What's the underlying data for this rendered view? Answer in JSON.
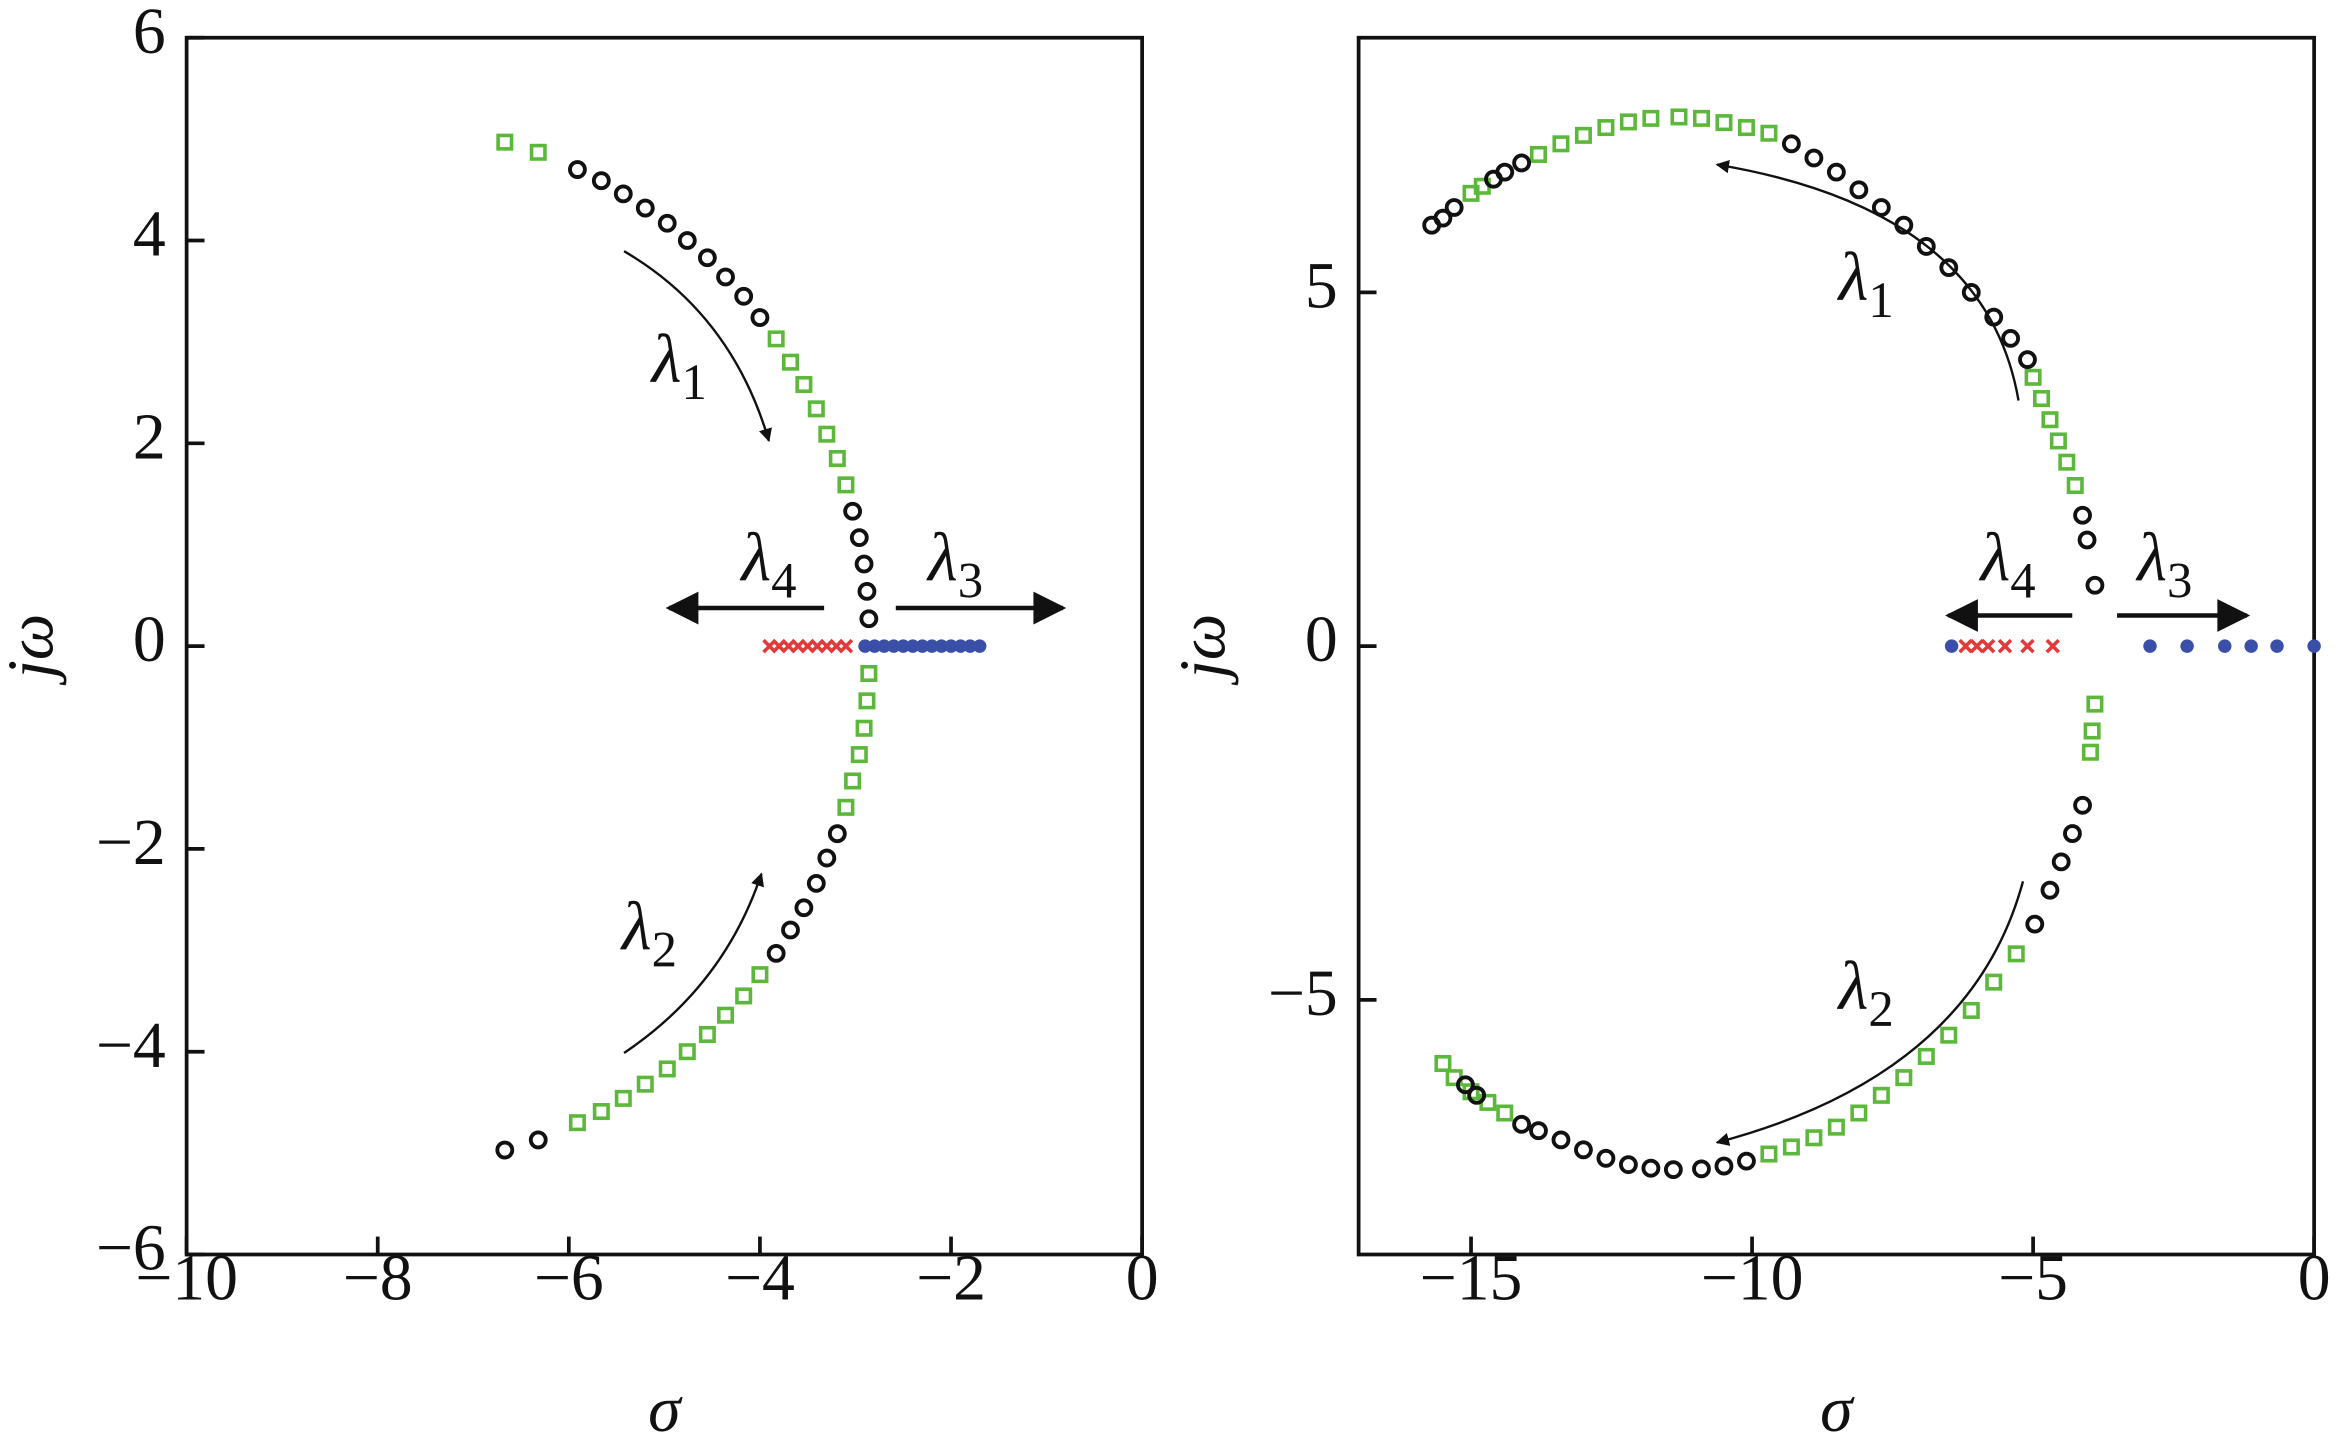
{
  "chart_data": [
    {
      "type": "scatter",
      "x_label": "σ",
      "y_label": "jω",
      "xlim": [
        -10,
        0
      ],
      "ylim": [
        -6,
        6
      ],
      "xticks": [
        {
          "value": -10,
          "label": "−10"
        },
        {
          "value": -8,
          "label": "−8"
        },
        {
          "value": -6,
          "label": "−6"
        },
        {
          "value": -4,
          "label": "−4"
        },
        {
          "value": -2,
          "label": "−2"
        },
        0
      ],
      "yticks": [
        {
          "value": -6,
          "label": "−6"
        },
        {
          "value": -4,
          "label": "−4"
        },
        {
          "value": -2,
          "label": "−2"
        },
        0,
        2,
        4,
        6
      ],
      "annotations": [
        {
          "symbol": "λ",
          "subscript": "1"
        },
        {
          "symbol": "λ",
          "subscript": "2"
        },
        {
          "symbol": "λ",
          "subscript": "3"
        },
        {
          "symbol": "λ",
          "subscript": "4"
        }
      ],
      "series": [
        {
          "color": "#5cb83a",
          "marker": "square",
          "x": [
            -6.67,
            -6.32,
            -3.83,
            -3.68,
            -3.54,
            -3.41,
            -3.3,
            -3.19,
            -3.1,
            -5.91,
            -5.66,
            -5.43,
            -5.2,
            -4.97,
            -4.76,
            -4.55,
            -4.36,
            -4.17,
            -4.0,
            -3.1,
            -3.03,
            -2.96,
            -2.91,
            -2.88,
            -2.86
          ],
          "y": [
            4.97,
            4.87,
            3.03,
            2.8,
            2.58,
            2.34,
            2.09,
            1.85,
            1.59,
            -4.7,
            -4.59,
            -4.46,
            -4.32,
            -4.17,
            -4.0,
            -3.83,
            -3.64,
            -3.45,
            -3.24,
            -1.59,
            -1.33,
            -1.07,
            -0.81,
            -0.54,
            -0.27
          ]
        },
        {
          "color": "#111111",
          "marker": "circle",
          "x": [
            -5.91,
            -5.66,
            -5.43,
            -5.2,
            -4.97,
            -4.76,
            -4.55,
            -4.36,
            -4.17,
            -4.0,
            -3.03,
            -2.96,
            -2.91,
            -2.88,
            -2.86,
            -6.67,
            -6.32,
            -3.83,
            -3.68,
            -3.54,
            -3.41,
            -3.3,
            -3.19
          ],
          "y": [
            4.7,
            4.59,
            4.46,
            4.32,
            4.17,
            4.0,
            3.83,
            3.64,
            3.45,
            3.24,
            1.33,
            1.07,
            0.81,
            0.54,
            0.27,
            -4.97,
            -4.87,
            -3.03,
            -2.8,
            -2.58,
            -2.34,
            -2.09,
            -1.85
          ]
        },
        {
          "color": "#e03a3a",
          "marker": "x",
          "x": [
            -3.9,
            -3.8,
            -3.7,
            -3.6,
            -3.5,
            -3.4,
            -3.3,
            -3.2,
            -3.1
          ],
          "y": [
            0,
            0,
            0,
            0,
            0,
            0,
            0,
            0,
            0
          ]
        },
        {
          "color": "#3a4fa8",
          "marker": "dot",
          "x": [
            -2.9,
            -2.8,
            -2.7,
            -2.6,
            -2.5,
            -2.4,
            -2.3,
            -2.2,
            -2.1,
            -2.0,
            -1.9,
            -1.8,
            -1.7
          ],
          "y": [
            0,
            0,
            0,
            0,
            0,
            0,
            0,
            0,
            0,
            0,
            0,
            0,
            0
          ]
        }
      ]
    },
    {
      "type": "scatter",
      "x_label": "σ",
      "y_label": "jω",
      "xlim": [
        -17,
        0
      ],
      "ylim": [
        -8.6,
        8.6
      ],
      "xticks": [
        {
          "value": -15,
          "label": "−15"
        },
        {
          "value": -10,
          "label": "−10"
        },
        {
          "value": -5,
          "label": "−5"
        },
        0
      ],
      "yticks": [
        {
          "value": -5,
          "label": "−5"
        },
        0,
        5
      ],
      "annotations": [
        {
          "symbol": "λ",
          "subscript": "1"
        },
        {
          "symbol": "λ",
          "subscript": "2"
        },
        {
          "symbol": "λ",
          "subscript": "3"
        },
        {
          "symbol": "λ",
          "subscript": "4"
        }
      ],
      "series": [
        {
          "color": "#5cb83a",
          "marker": "square",
          "x": [
            -15.0,
            -14.8,
            -13.8,
            -13.4,
            -13.0,
            -12.6,
            -12.2,
            -11.8,
            -11.3,
            -10.9,
            -10.5,
            -10.1,
            -9.7,
            -5.0,
            -4.85,
            -4.7,
            -4.55,
            -4.4,
            -4.25,
            -3.9,
            -3.95,
            -3.98,
            -5.3,
            -5.7,
            -6.1,
            -6.5,
            -6.9,
            -7.3,
            -7.7,
            -8.1,
            -8.5,
            -8.9,
            -9.3,
            -9.7,
            -14.4,
            -14.7,
            -15.0,
            -15.3,
            -15.5
          ],
          "y": [
            6.4,
            6.5,
            6.95,
            7.1,
            7.22,
            7.33,
            7.41,
            7.46,
            7.48,
            7.46,
            7.4,
            7.33,
            7.25,
            3.8,
            3.5,
            3.2,
            2.9,
            2.6,
            2.27,
            -0.82,
            -1.2,
            -1.5,
            -4.35,
            -4.75,
            -5.15,
            -5.5,
            -5.8,
            -6.1,
            -6.35,
            -6.6,
            -6.8,
            -6.95,
            -7.08,
            -7.18,
            -6.6,
            -6.45,
            -6.3,
            -6.1,
            -5.9
          ]
        },
        {
          "color": "#111111",
          "marker": "circle",
          "x": [
            -15.7,
            -15.5,
            -15.3,
            -14.6,
            -14.4,
            -14.1,
            -9.3,
            -8.9,
            -8.5,
            -8.1,
            -7.7,
            -7.3,
            -6.9,
            -6.5,
            -6.1,
            -5.7,
            -5.4,
            -5.1,
            -4.12,
            -4.04,
            -3.9,
            -4.12,
            -4.3,
            -4.5,
            -4.7,
            -4.97,
            -10.1,
            -10.5,
            -10.9,
            -11.4,
            -11.8,
            -12.2,
            -12.6,
            -13.0,
            -13.4,
            -13.8,
            -14.1,
            -14.9,
            -15.1
          ],
          "y": [
            5.95,
            6.05,
            6.2,
            6.6,
            6.7,
            6.83,
            7.1,
            6.9,
            6.7,
            6.45,
            6.2,
            5.95,
            5.65,
            5.35,
            5.0,
            4.65,
            4.35,
            4.05,
            1.85,
            1.5,
            0.86,
            -2.25,
            -2.65,
            -3.05,
            -3.45,
            -3.93,
            -7.28,
            -7.35,
            -7.39,
            -7.4,
            -7.38,
            -7.33,
            -7.24,
            -7.12,
            -6.98,
            -6.85,
            -6.76,
            -6.35,
            -6.2
          ]
        },
        {
          "color": "#e03a3a",
          "marker": "x",
          "x": [
            -6.2,
            -6.0,
            -5.8,
            -5.5,
            -5.1,
            -4.65
          ],
          "y": [
            0,
            0,
            0,
            0,
            0,
            0
          ]
        },
        {
          "color": "#3a4fa8",
          "marker": "dot",
          "x": [
            -6.45,
            -2.92,
            -2.26,
            -1.59,
            -1.12,
            -0.66,
            0
          ],
          "y": [
            0,
            0,
            0,
            0,
            0,
            0,
            0
          ]
        }
      ]
    }
  ]
}
